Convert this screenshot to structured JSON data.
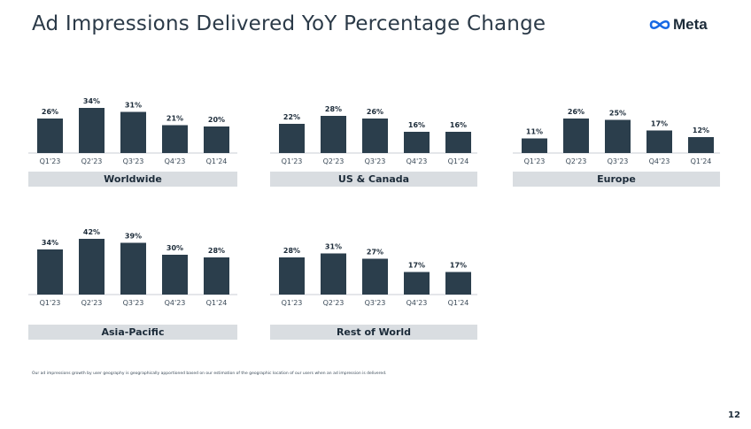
{
  "header": {
    "title": "Ad Impressions Delivered YoY Percentage Change",
    "logo_text": "Meta"
  },
  "colors": {
    "bar": "#2b3e4c",
    "label_band": "#d9dde1",
    "text": "#1c2b39"
  },
  "chart_data": [
    {
      "type": "bar",
      "region": "Worldwide",
      "categories": [
        "Q1'23",
        "Q2'23",
        "Q3'23",
        "Q4'23",
        "Q1'24"
      ],
      "values": [
        26,
        34,
        31,
        21,
        20
      ],
      "labels": [
        "26%",
        "34%",
        "31%",
        "21%",
        "20%"
      ]
    },
    {
      "type": "bar",
      "region": "US & Canada",
      "categories": [
        "Q1'23",
        "Q2'23",
        "Q3'23",
        "Q4'23",
        "Q1'24"
      ],
      "values": [
        22,
        28,
        26,
        16,
        16
      ],
      "labels": [
        "22%",
        "28%",
        "26%",
        "16%",
        "16%"
      ]
    },
    {
      "type": "bar",
      "region": "Europe",
      "categories": [
        "Q1'23",
        "Q2'23",
        "Q3'23",
        "Q4'23",
        "Q1'24"
      ],
      "values": [
        11,
        26,
        25,
        17,
        12
      ],
      "labels": [
        "11%",
        "26%",
        "25%",
        "17%",
        "12%"
      ]
    },
    {
      "type": "bar",
      "region": "Asia-Pacific",
      "categories": [
        "Q1'23",
        "Q2'23",
        "Q3'23",
        "Q4'23",
        "Q1'24"
      ],
      "values": [
        34,
        42,
        39,
        30,
        28
      ],
      "labels": [
        "34%",
        "42%",
        "39%",
        "30%",
        "28%"
      ]
    },
    {
      "type": "bar",
      "region": "Rest of World",
      "categories": [
        "Q1'23",
        "Q2'23",
        "Q3'23",
        "Q4'23",
        "Q1'24"
      ],
      "values": [
        28,
        31,
        27,
        17,
        17
      ],
      "labels": [
        "28%",
        "31%",
        "27%",
        "17%",
        "17%"
      ]
    }
  ],
  "footnote": "Our ad impressions growth by user geography is geographically apportioned based on our estimation of the geographic location of our users when an ad impression is delivered.",
  "page_number": "12"
}
